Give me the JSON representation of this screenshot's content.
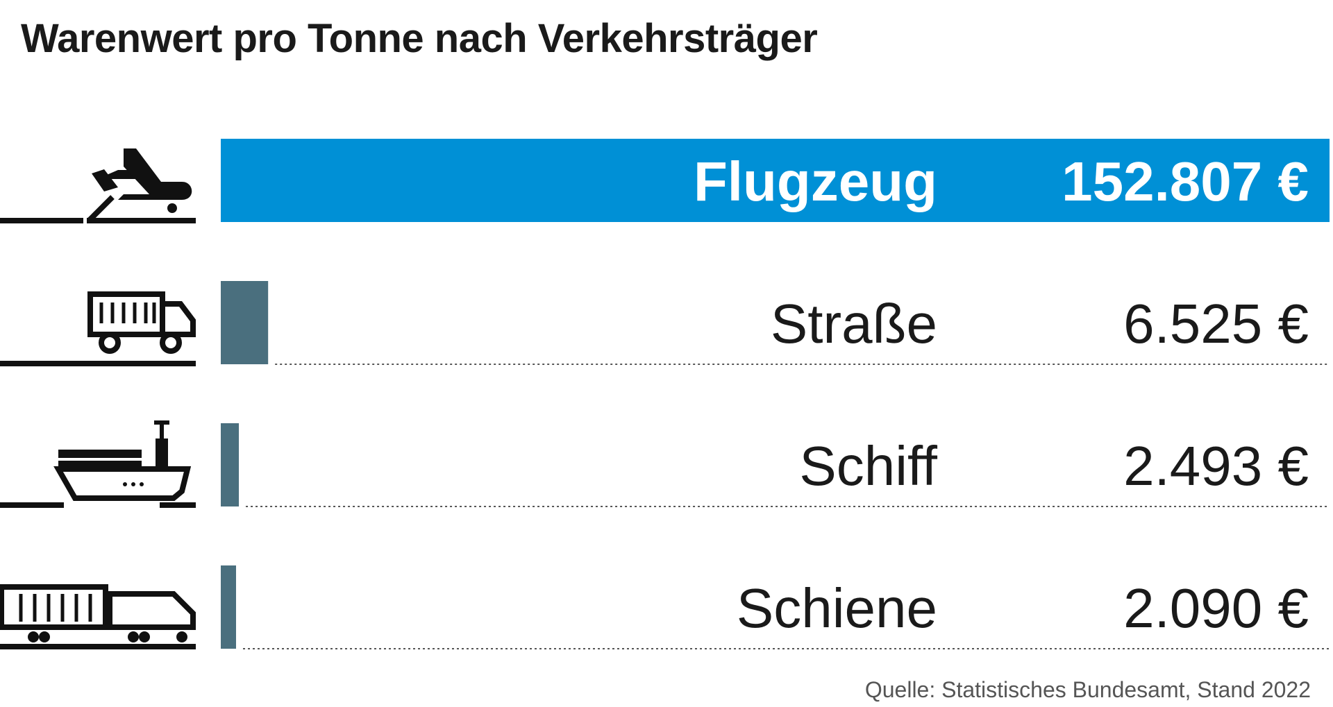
{
  "title": "Warenwert pro Tonne nach Verkehrsträger",
  "source": "Quelle: Statistisches Bundesamt, Stand 2022",
  "colors": {
    "highlight": "#0090d6",
    "bar": "#4a6f7e",
    "icon": "#111111",
    "dots": "#555555"
  },
  "chart_data": {
    "type": "bar",
    "orientation": "horizontal",
    "title": "Warenwert pro Tonne nach Verkehrsträger",
    "categories": [
      "Flugzeug",
      "Straße",
      "Schiff",
      "Schiene"
    ],
    "values": [
      152807,
      6525,
      2493,
      2090
    ],
    "value_labels": [
      "152.807 €",
      "6.525 €",
      "2.493 €",
      "2.090 €"
    ],
    "icons": [
      "airplane-icon",
      "truck-icon",
      "ship-icon",
      "train-icon"
    ],
    "highlight_index": 0,
    "unit": "€",
    "xlim": [
      0,
      152807
    ],
    "grid": false,
    "legend": "none"
  }
}
